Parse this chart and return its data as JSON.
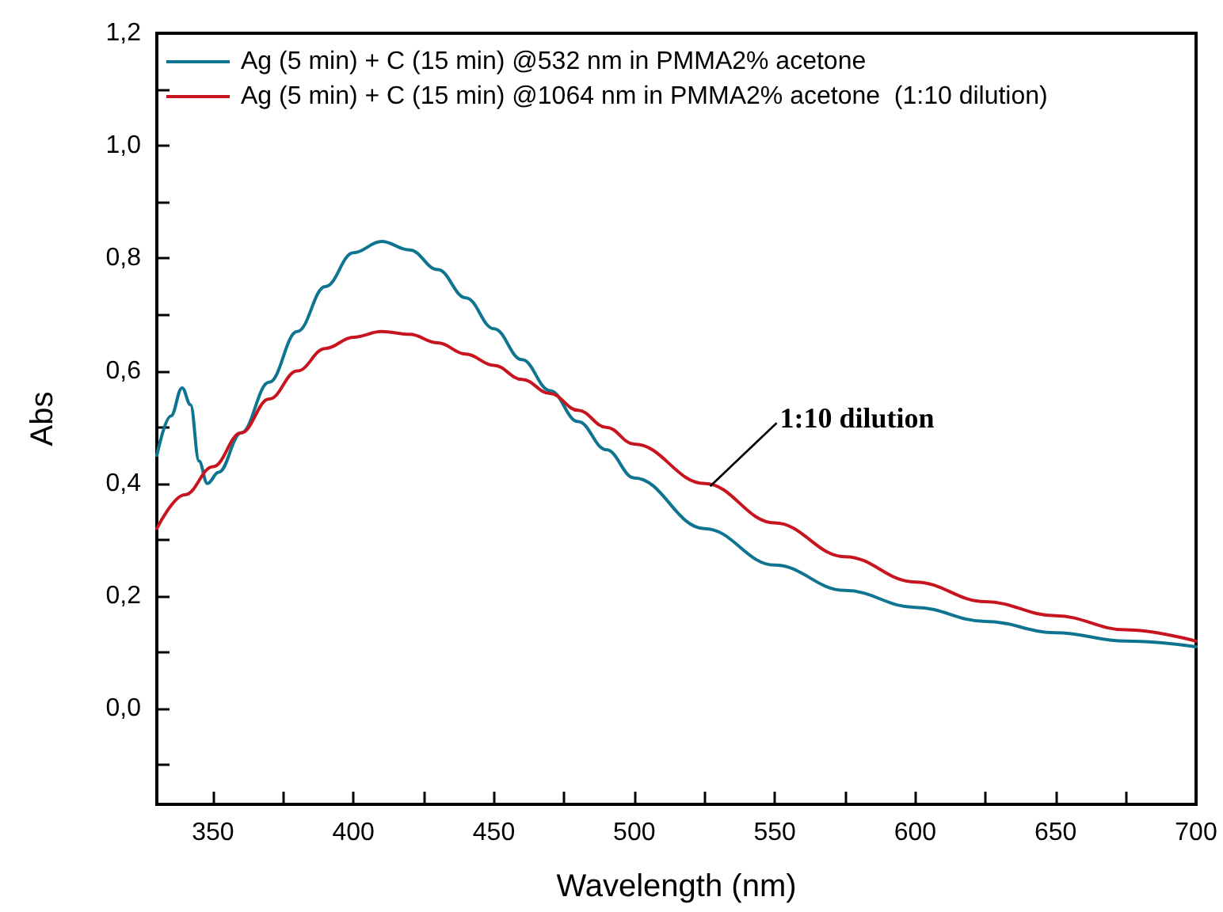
{
  "chart_data": {
    "type": "line",
    "xlabel": "Wavelength (nm)",
    "ylabel": "Abs",
    "xlim": [
      330,
      700
    ],
    "xticks": [
      350,
      {
        "value": 375,
        "label": null
      },
      400,
      {
        "value": 425,
        "label": null
      },
      450,
      {
        "value": 475,
        "label": null
      },
      500,
      {
        "value": 525,
        "label": null
      },
      550,
      {
        "value": 575,
        "label": null
      },
      600,
      {
        "value": 625,
        "label": null
      },
      650,
      {
        "value": 675,
        "label": null
      },
      700
    ],
    "ylim": [
      -0.17,
      1.2
    ],
    "yticks": [
      {
        "value": -0.1,
        "label": null
      },
      {
        "value": 0,
        "label": "0,0"
      },
      {
        "value": 0.1,
        "label": null
      },
      {
        "value": 0.2,
        "label": "0,2"
      },
      {
        "value": 0.3,
        "label": null
      },
      {
        "value": 0.4,
        "label": "0,4"
      },
      {
        "value": 0.5,
        "label": null
      },
      {
        "value": 0.6,
        "label": "0,6"
      },
      {
        "value": 0.7,
        "label": null
      },
      {
        "value": 0.8,
        "label": "0,8"
      },
      {
        "value": 0.9,
        "label": null
      },
      {
        "value": 1.0,
        "label": "1,0"
      },
      {
        "value": 1.1,
        "label": null
      },
      {
        "value": 1.2,
        "label": "1,2"
      }
    ],
    "grid": false,
    "legend": "top left",
    "marker": "none",
    "line_style": "solid",
    "annotations": [
      {
        "text": "1:10 dilution",
        "x": 527,
        "y": 0.395
      }
    ],
    "series": [
      {
        "name": "Ag (5 min) + C (15 min) @532 nm in PMMA2% acetone",
        "color": "#0e7490",
        "x": [
          330,
          335,
          339,
          342,
          345,
          348,
          352,
          360,
          370,
          380,
          390,
          400,
          410,
          420,
          430,
          440,
          450,
          460,
          470,
          480,
          490,
          500,
          525,
          550,
          575,
          600,
          625,
          650,
          675,
          700
        ],
        "values": [
          0.45,
          0.52,
          0.57,
          0.54,
          0.44,
          0.4,
          0.42,
          0.49,
          0.58,
          0.67,
          0.75,
          0.81,
          0.83,
          0.815,
          0.78,
          0.73,
          0.675,
          0.62,
          0.565,
          0.51,
          0.46,
          0.41,
          0.32,
          0.255,
          0.21,
          0.18,
          0.155,
          0.135,
          0.12,
          0.11
        ]
      },
      {
        "name": "Ag (5 min) + C (15 min) @1064 nm in PMMA2% acetone  (1:10 dilution)",
        "color": "#c8141e",
        "x": [
          330,
          340,
          350,
          360,
          370,
          380,
          390,
          400,
          410,
          420,
          430,
          440,
          450,
          460,
          470,
          480,
          490,
          500,
          525,
          550,
          575,
          600,
          625,
          650,
          675,
          700
        ],
        "values": [
          0.32,
          0.38,
          0.43,
          0.49,
          0.55,
          0.6,
          0.64,
          0.66,
          0.67,
          0.665,
          0.65,
          0.63,
          0.61,
          0.585,
          0.56,
          0.53,
          0.5,
          0.47,
          0.4,
          0.33,
          0.27,
          0.225,
          0.19,
          0.165,
          0.14,
          0.12
        ]
      }
    ]
  }
}
